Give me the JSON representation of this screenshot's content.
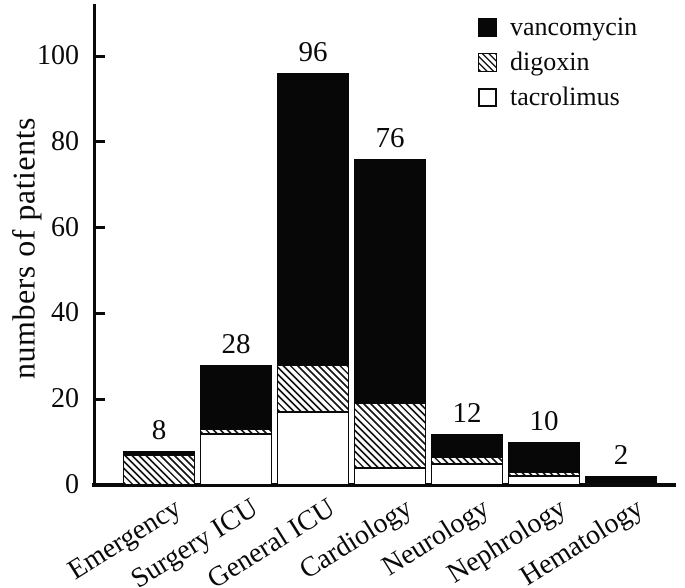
{
  "chart_data": {
    "type": "bar",
    "stacked": true,
    "title": "",
    "xlabel": "",
    "ylabel": "numbers of patients",
    "ylim": [
      0,
      112
    ],
    "yticks": [
      0,
      20,
      40,
      60,
      80,
      100
    ],
    "grid": false,
    "categories": [
      "Emergency",
      "Surgery ICU",
      "General ICU",
      "Cardiology",
      "Neurology",
      "Nephrology",
      "Hematology"
    ],
    "series": [
      {
        "name": "tacrolimus",
        "style": "white",
        "values": [
          0,
          12,
          17,
          4,
          5,
          2,
          0.5
        ]
      },
      {
        "name": "digoxin",
        "style": "hatch",
        "values": [
          7,
          1,
          11,
          15,
          1.5,
          1,
          0
        ]
      },
      {
        "name": "vancomycin",
        "style": "solid",
        "values": [
          1,
          15,
          68,
          57,
          5.5,
          7,
          1.5
        ]
      }
    ],
    "totals": [
      8,
      28,
      96,
      76,
      12,
      10,
      2
    ],
    "legend": {
      "position": "top-right",
      "entries": [
        "vancomycin",
        "digoxin",
        "tacrolimus"
      ]
    },
    "colors": {
      "vancomycin_fill": "#070707",
      "digoxin_hatch": "#141414",
      "tacrolimus_fill": "#ffffff",
      "axis": "#0a0a0a",
      "background": "#ffffff"
    }
  }
}
